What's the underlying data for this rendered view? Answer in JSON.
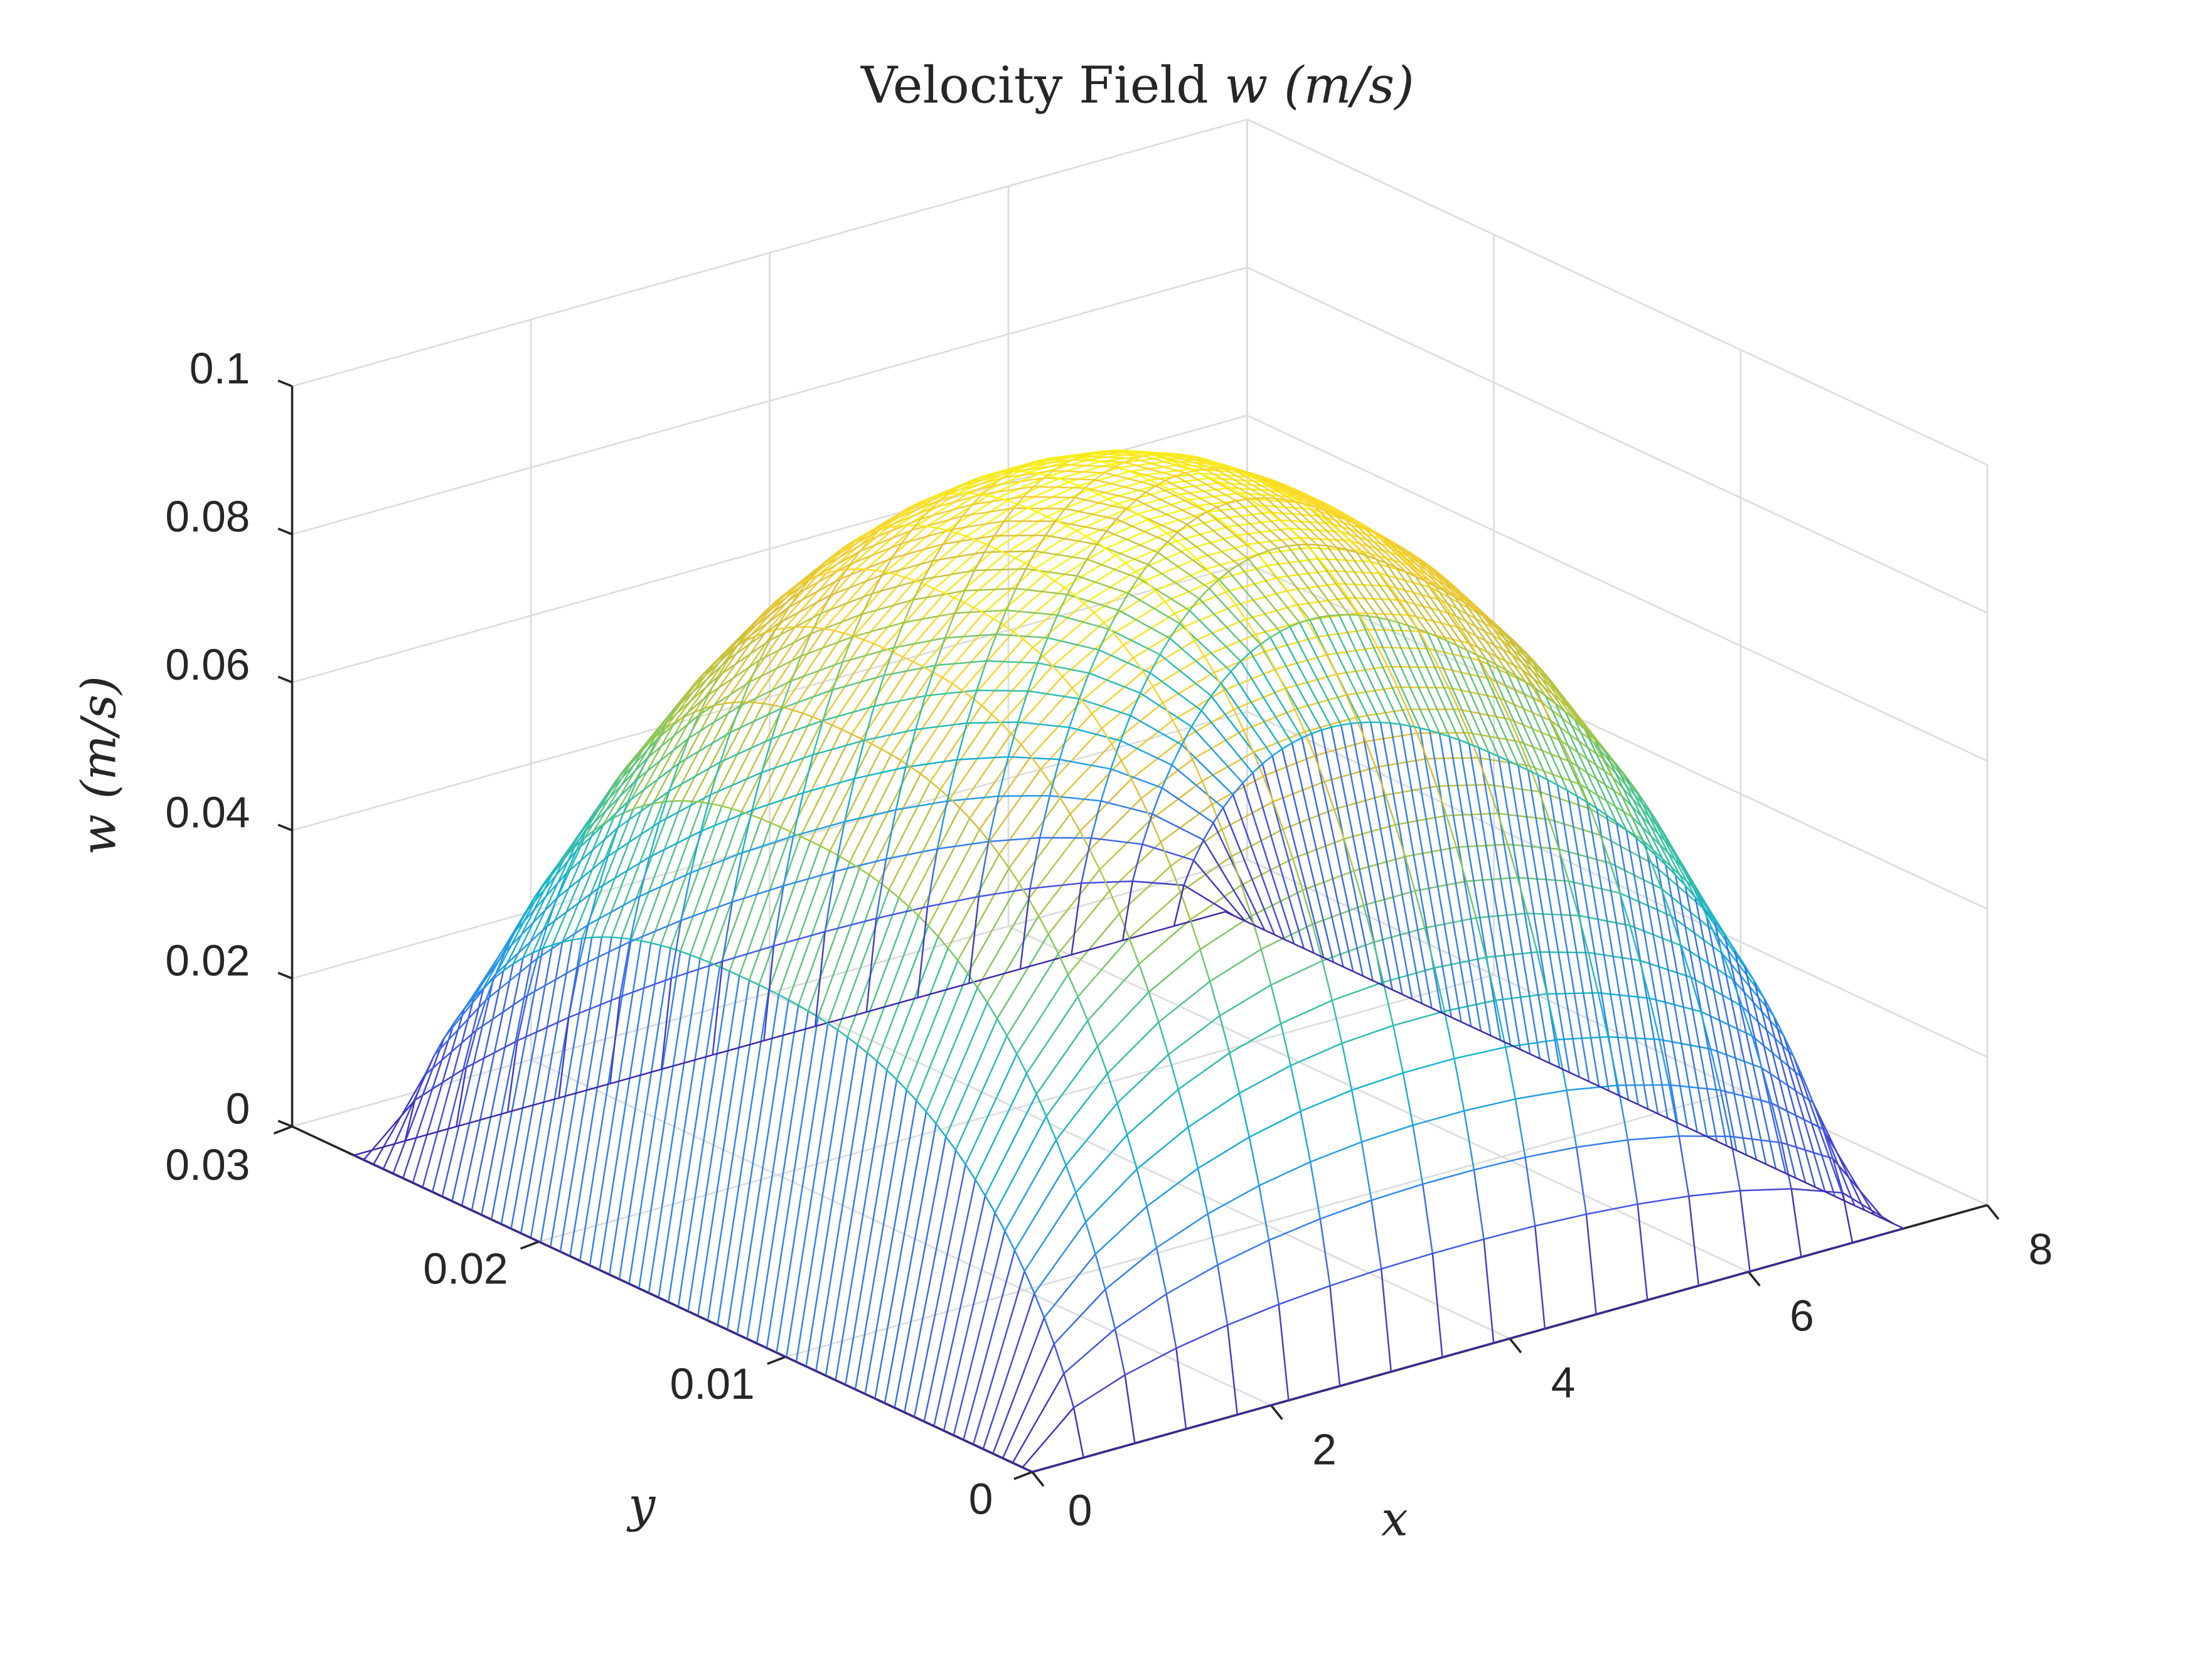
{
  "chart_data": {
    "type": "surface",
    "title": "Velocity Field w (m/s)",
    "title_parts": {
      "text": "Velocity Field ",
      "var": "w",
      "units": "(m/s)"
    },
    "xlabel": "x",
    "ylabel": "y",
    "zlabel": "w (m/s)",
    "xlim": [
      0,
      8
    ],
    "ylim": [
      0,
      0.03
    ],
    "zlim": [
      0,
      0.1
    ],
    "xticks": [
      0,
      2,
      4,
      6,
      8
    ],
    "xtick_labels": [
      "0",
      "2",
      "4",
      "6",
      "8"
    ],
    "yticks": [
      0,
      0.01,
      0.02,
      0.03
    ],
    "ytick_labels": [
      "0",
      "0.01",
      "0.02",
      "0.03"
    ],
    "zticks": [
      0,
      0.02,
      0.04,
      0.06,
      0.08,
      0.1
    ],
    "ztick_labels": [
      "0",
      "0.02",
      "0.04",
      "0.06",
      "0.08",
      "0.1"
    ],
    "grid": true,
    "colormap": "parula",
    "colormap_stops": [
      "#3e26a8",
      "#4352e6",
      "#2c8ff0",
      "#14b5cf",
      "#3ec29a",
      "#9bc84a",
      "#ddbd3b",
      "#fad52e",
      "#f9fb0e"
    ],
    "surface": {
      "description": "Wireframe mesh of steady laminar velocity w(x,y) in a rectangular duct cross-section; zero on walls, maximum ~0.095 m/s at center",
      "x_range": [
        0,
        7.3
      ],
      "y_range": [
        0,
        0.0275
      ],
      "x_grid_count": 18,
      "y_grid_count": 70,
      "peak_value": 0.095,
      "peak_location": {
        "x": 3.65,
        "y": 0.01375
      }
    }
  }
}
